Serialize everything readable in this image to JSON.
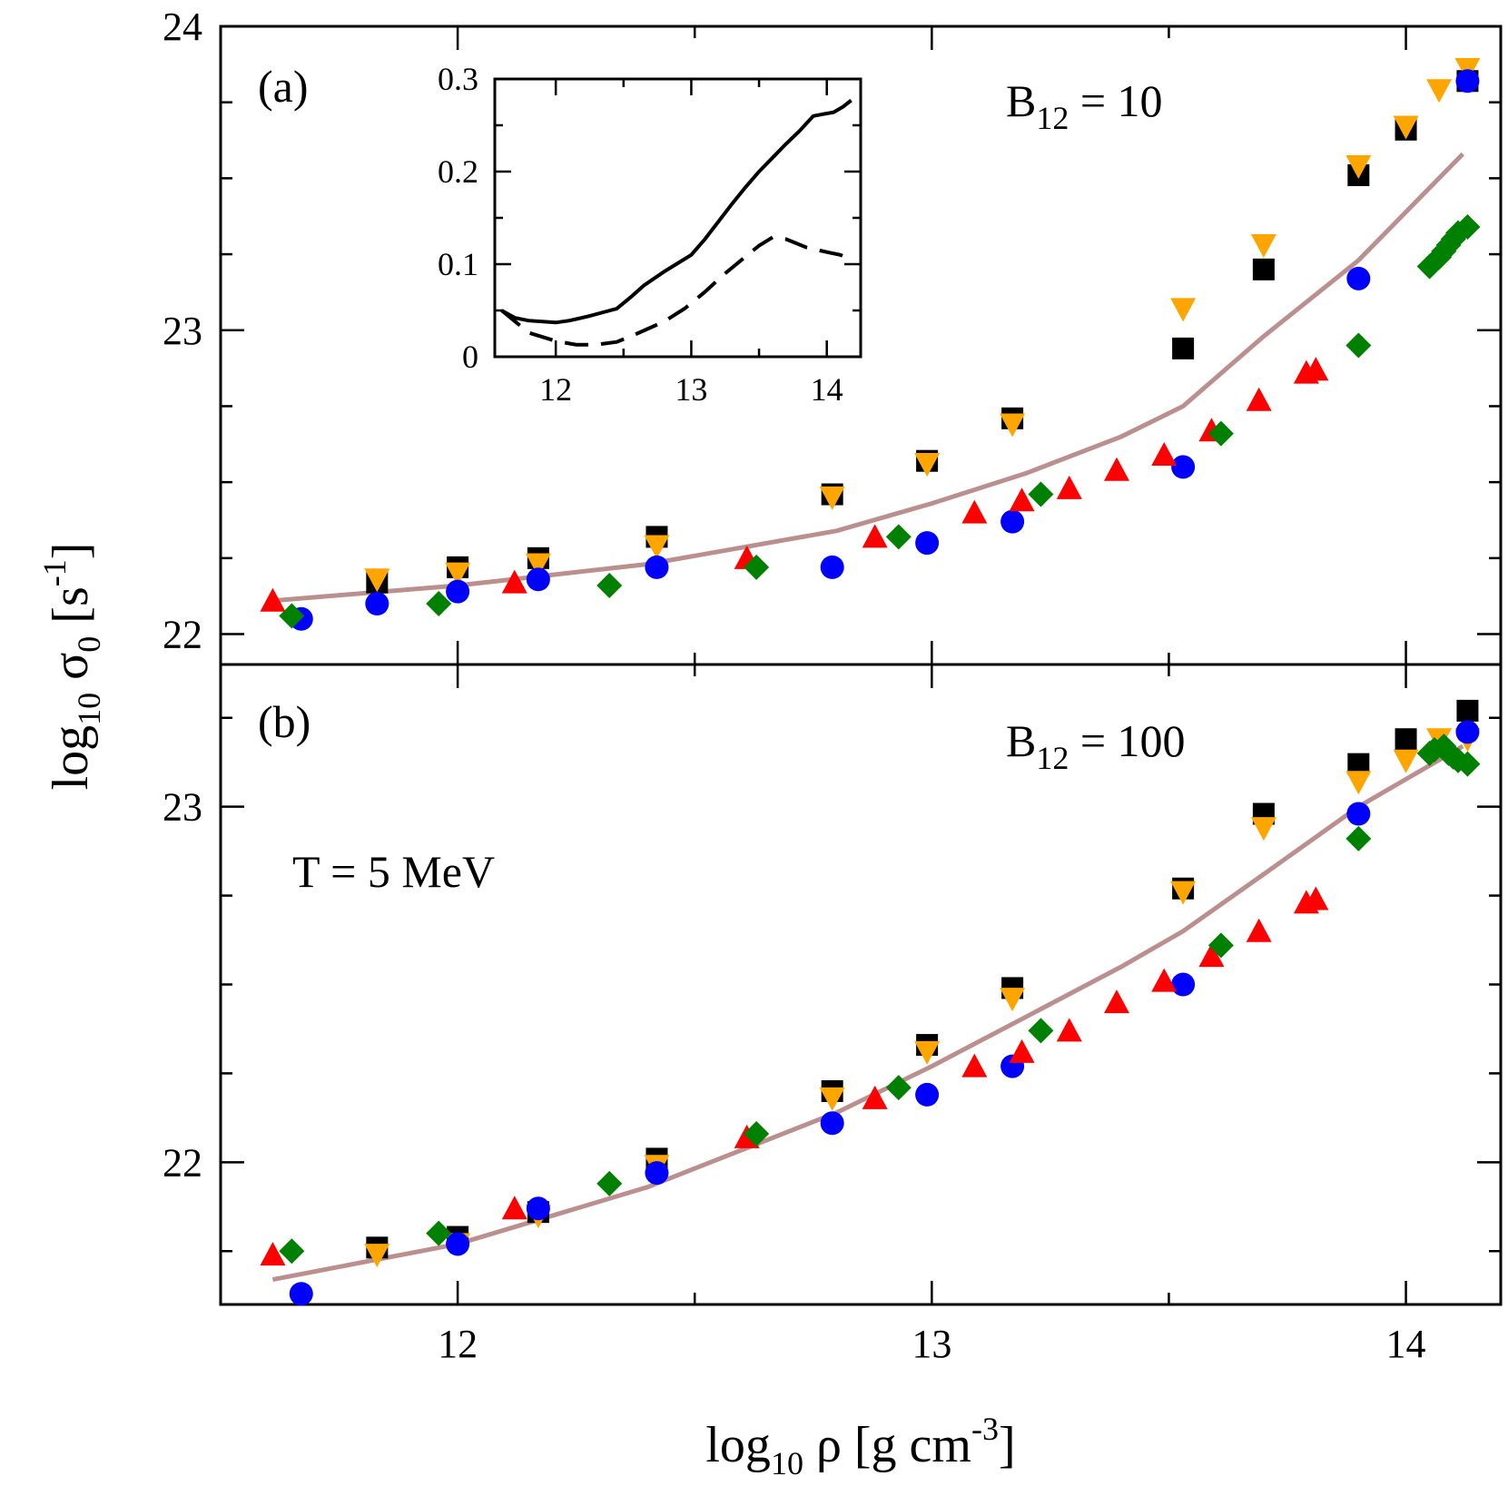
{
  "chart_data": [
    {
      "type": "scatter",
      "panel_label": "(a)",
      "annotation": "B",
      "annotation_sub": "12",
      "annotation_rest": " = 10",
      "xlim": [
        11.5,
        14.2
      ],
      "ylim": [
        21.9,
        24.0
      ],
      "yticks": [
        22,
        23,
        24
      ],
      "ytick_labels": [
        "22",
        "23",
        "24"
      ],
      "series": [
        {
          "marker": "square",
          "color": "#000000",
          "points": [
            [
              11.83,
              22.17
            ],
            [
              12.0,
              22.22
            ],
            [
              12.17,
              22.25
            ],
            [
              12.42,
              22.32
            ],
            [
              12.79,
              22.46
            ],
            [
              12.99,
              22.57
            ],
            [
              13.17,
              22.71
            ],
            [
              13.53,
              22.94
            ],
            [
              13.7,
              23.2
            ],
            [
              13.9,
              23.51
            ],
            [
              14.0,
              23.66
            ],
            [
              14.13,
              23.82
            ]
          ]
        },
        {
          "marker": "triangle-down",
          "color": "#ffa500",
          "points": [
            [
              11.83,
              22.18
            ],
            [
              12.0,
              22.2
            ],
            [
              12.17,
              22.23
            ],
            [
              12.42,
              22.29
            ],
            [
              12.79,
              22.45
            ],
            [
              12.99,
              22.56
            ],
            [
              13.17,
              22.69
            ],
            [
              13.53,
              23.07
            ],
            [
              13.7,
              23.28
            ],
            [
              13.9,
              23.54
            ],
            [
              14.0,
              23.67
            ],
            [
              14.07,
              23.79
            ],
            [
              14.13,
              23.86
            ]
          ]
        },
        {
          "marker": "circle",
          "color": "#0000ff",
          "points": [
            [
              11.67,
              22.05
            ],
            [
              11.83,
              22.1
            ],
            [
              12.0,
              22.14
            ],
            [
              12.17,
              22.18
            ],
            [
              12.42,
              22.22
            ],
            [
              12.79,
              22.22
            ],
            [
              12.99,
              22.3
            ],
            [
              13.17,
              22.37
            ],
            [
              13.53,
              22.55
            ],
            [
              13.9,
              23.17
            ],
            [
              14.13,
              23.82
            ]
          ]
        },
        {
          "marker": "triangle-up",
          "color": "#ff0000",
          "points": [
            [
              11.61,
              22.11
            ],
            [
              12.12,
              22.17
            ],
            [
              12.61,
              22.25
            ],
            [
              12.88,
              22.32
            ],
            [
              13.09,
              22.4
            ],
            [
              13.19,
              22.44
            ],
            [
              13.29,
              22.48
            ],
            [
              13.39,
              22.54
            ],
            [
              13.49,
              22.59
            ],
            [
              13.59,
              22.67
            ],
            [
              13.69,
              22.77
            ],
            [
              13.79,
              22.86
            ],
            [
              13.81,
              22.87
            ]
          ]
        },
        {
          "marker": "diamond",
          "color": "#008000",
          "points": [
            [
              11.65,
              22.06
            ],
            [
              11.96,
              22.1
            ],
            [
              12.32,
              22.16
            ],
            [
              12.63,
              22.22
            ],
            [
              12.93,
              22.32
            ],
            [
              13.23,
              22.46
            ],
            [
              13.61,
              22.66
            ],
            [
              13.9,
              22.95
            ],
            [
              14.05,
              23.21
            ],
            [
              14.07,
              23.24
            ],
            [
              14.08,
              23.26
            ],
            [
              14.09,
              23.28
            ],
            [
              14.1,
              23.3
            ],
            [
              14.11,
              23.32
            ],
            [
              14.13,
              23.34
            ]
          ]
        }
      ],
      "line": {
        "color": "#bc8f8f",
        "points": [
          [
            11.61,
            22.11
          ],
          [
            12.0,
            22.16
          ],
          [
            12.4,
            22.23
          ],
          [
            12.8,
            22.34
          ],
          [
            13.0,
            22.43
          ],
          [
            13.2,
            22.53
          ],
          [
            13.4,
            22.65
          ],
          [
            13.53,
            22.75
          ],
          [
            13.7,
            22.98
          ],
          [
            13.9,
            23.23
          ],
          [
            14.12,
            23.58
          ]
        ]
      },
      "inset": {
        "xlim": [
          11.55,
          14.25
        ],
        "ylim": [
          0.0,
          0.3
        ],
        "xticks": [
          12,
          13,
          14
        ],
        "xtick_labels": [
          "12",
          "13",
          "14"
        ],
        "yticks": [
          0,
          0.1,
          0.2,
          0.3
        ],
        "ytick_labels": [
          "0",
          "0.1",
          "0.2",
          "0.3"
        ],
        "solid": [
          [
            11.6,
            0.05
          ],
          [
            11.7,
            0.042
          ],
          [
            11.8,
            0.039
          ],
          [
            12.0,
            0.037
          ],
          [
            12.1,
            0.039
          ],
          [
            12.25,
            0.044
          ],
          [
            12.35,
            0.048
          ],
          [
            12.45,
            0.052
          ],
          [
            12.55,
            0.064
          ],
          [
            12.65,
            0.077
          ],
          [
            12.8,
            0.092
          ],
          [
            12.9,
            0.101
          ],
          [
            13.0,
            0.11
          ],
          [
            13.1,
            0.127
          ],
          [
            13.2,
            0.146
          ],
          [
            13.3,
            0.165
          ],
          [
            13.4,
            0.183
          ],
          [
            13.5,
            0.2
          ],
          [
            13.6,
            0.215
          ],
          [
            13.7,
            0.23
          ],
          [
            13.8,
            0.244
          ],
          [
            13.9,
            0.26
          ],
          [
            13.97,
            0.262
          ],
          [
            14.05,
            0.264
          ],
          [
            14.12,
            0.27
          ],
          [
            14.18,
            0.277
          ]
        ],
        "dashed": [
          [
            11.6,
            0.05
          ],
          [
            11.7,
            0.038
          ],
          [
            11.8,
            0.026
          ],
          [
            12.0,
            0.017
          ],
          [
            12.15,
            0.013
          ],
          [
            12.3,
            0.013
          ],
          [
            12.45,
            0.016
          ],
          [
            12.6,
            0.025
          ],
          [
            12.8,
            0.038
          ],
          [
            12.95,
            0.052
          ],
          [
            13.1,
            0.07
          ],
          [
            13.25,
            0.09
          ],
          [
            13.4,
            0.108
          ],
          [
            13.5,
            0.12
          ],
          [
            13.6,
            0.129
          ],
          [
            13.7,
            0.127
          ],
          [
            13.85,
            0.118
          ],
          [
            14.0,
            0.113
          ],
          [
            14.1,
            0.11
          ],
          [
            14.18,
            0.105
          ]
        ]
      }
    },
    {
      "type": "scatter",
      "panel_label": "(b)",
      "annotation": "B",
      "annotation_sub": "12",
      "annotation_rest": " = 100",
      "annotation2": "T = 5 MeV",
      "xlim": [
        11.5,
        14.2
      ],
      "ylim": [
        21.6,
        23.4
      ],
      "xticks": [
        12,
        13,
        14
      ],
      "xtick_labels": [
        "12",
        "13",
        "14"
      ],
      "yticks": [
        22,
        23
      ],
      "ytick_labels": [
        "22",
        "23"
      ],
      "series": [
        {
          "marker": "square",
          "color": "#000000",
          "points": [
            [
              11.83,
              21.76
            ],
            [
              12.0,
              21.79
            ],
            [
              12.17,
              21.86
            ],
            [
              12.42,
              22.01
            ],
            [
              12.79,
              22.2
            ],
            [
              12.99,
              22.33
            ],
            [
              13.17,
              22.49
            ],
            [
              13.53,
              22.77
            ],
            [
              13.7,
              22.98
            ],
            [
              13.9,
              23.12
            ],
            [
              14.0,
              23.19
            ],
            [
              14.13,
              23.27
            ]
          ]
        },
        {
          "marker": "triangle-down",
          "color": "#ffa500",
          "points": [
            [
              11.83,
              21.74
            ],
            [
              12.0,
              21.77
            ],
            [
              12.17,
              21.85
            ],
            [
              12.42,
              21.99
            ],
            [
              12.79,
              22.18
            ],
            [
              12.99,
              22.31
            ],
            [
              13.17,
              22.46
            ],
            [
              13.53,
              22.76
            ],
            [
              13.7,
              22.94
            ],
            [
              13.9,
              23.07
            ],
            [
              14.0,
              23.13
            ],
            [
              14.07,
              23.19
            ],
            [
              14.13,
              23.19
            ]
          ]
        },
        {
          "marker": "circle",
          "color": "#0000ff",
          "points": [
            [
              11.67,
              21.63
            ],
            [
              12.0,
              21.77
            ],
            [
              12.17,
              21.87
            ],
            [
              12.42,
              21.97
            ],
            [
              12.79,
              22.11
            ],
            [
              12.99,
              22.19
            ],
            [
              13.17,
              22.27
            ],
            [
              13.53,
              22.5
            ],
            [
              13.9,
              22.98
            ],
            [
              14.13,
              23.21
            ]
          ]
        },
        {
          "marker": "triangle-up",
          "color": "#ff0000",
          "points": [
            [
              11.61,
              21.74
            ],
            [
              12.12,
              21.87
            ],
            [
              12.61,
              22.07
            ],
            [
              12.88,
              22.18
            ],
            [
              13.09,
              22.27
            ],
            [
              13.19,
              22.31
            ],
            [
              13.29,
              22.37
            ],
            [
              13.39,
              22.45
            ],
            [
              13.49,
              22.51
            ],
            [
              13.59,
              22.58
            ],
            [
              13.69,
              22.65
            ],
            [
              13.79,
              22.73
            ],
            [
              13.81,
              22.74
            ]
          ]
        },
        {
          "marker": "diamond",
          "color": "#008000",
          "points": [
            [
              11.65,
              21.75
            ],
            [
              11.96,
              21.8
            ],
            [
              12.32,
              21.94
            ],
            [
              12.63,
              22.08
            ],
            [
              12.93,
              22.21
            ],
            [
              13.23,
              22.37
            ],
            [
              13.61,
              22.61
            ],
            [
              13.9,
              22.91
            ],
            [
              14.05,
              23.15
            ],
            [
              14.06,
              23.16
            ],
            [
              14.08,
              23.17
            ],
            [
              14.09,
              23.15
            ],
            [
              14.1,
              23.14
            ],
            [
              14.11,
              23.13
            ],
            [
              14.13,
              23.12
            ]
          ]
        }
      ],
      "line": {
        "color": "#bc8f8f",
        "points": [
          [
            11.61,
            21.67
          ],
          [
            12.0,
            21.77
          ],
          [
            12.4,
            21.93
          ],
          [
            12.8,
            22.14
          ],
          [
            13.0,
            22.27
          ],
          [
            13.2,
            22.41
          ],
          [
            13.4,
            22.55
          ],
          [
            13.53,
            22.65
          ],
          [
            13.7,
            22.81
          ],
          [
            13.9,
            23.0
          ],
          [
            14.12,
            23.17
          ]
        ]
      }
    }
  ],
  "xlabel_main": "log",
  "xlabel_sub": "10",
  "xlabel_rest": " ρ [g cm",
  "xlabel_sup": "-3",
  "xlabel_end": "]",
  "ylabel_main": "log",
  "ylabel_sub": "10",
  "ylabel_sigma": " σ",
  "ylabel_sigma_sub": "0",
  "ylabel_rest": " [s",
  "ylabel_sup": "-1",
  "ylabel_end": "]"
}
